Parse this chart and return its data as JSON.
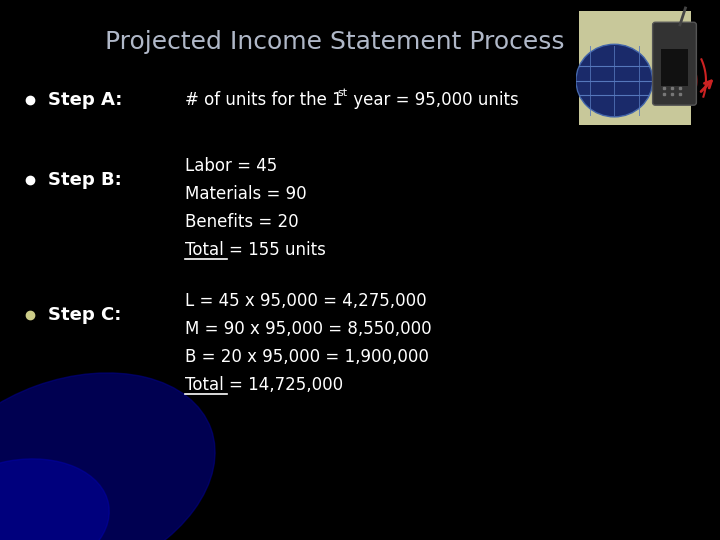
{
  "title": "Projected Income Statement Process",
  "title_color": "#b0b8c8",
  "title_fontsize": 18,
  "bg_color": "#000000",
  "bullet_color": "#ffffff",
  "bullet_c_color": "#cccc88",
  "text_color": "#ffffff",
  "step_a_label": "Step A:",
  "step_a_text": "# of units for the 1",
  "step_a_super": "st",
  "step_a_text2": " year = 95,000 units",
  "step_b_label": "Step B:",
  "step_b_lines": [
    "Labor = 45",
    "Materials = 90",
    "Benefits = 20",
    "Total = 155 units"
  ],
  "step_b_underline": [
    false,
    false,
    false,
    true
  ],
  "step_c_label": "Step C:",
  "step_c_lines": [
    "L = 45 x 95,000 = 4,275,000",
    "M = 90 x 95,000 = 8,550,000",
    "B = 20 x 95,000 = 1,900,000",
    "Total = 14,725,000"
  ],
  "step_c_underline": [
    false,
    false,
    false,
    true
  ],
  "label_fontsize": 13,
  "text_fontsize": 12,
  "arc_color1": "#1a1acc",
  "arc_color2": "#2222dd",
  "arc_color3": "#0000bb"
}
